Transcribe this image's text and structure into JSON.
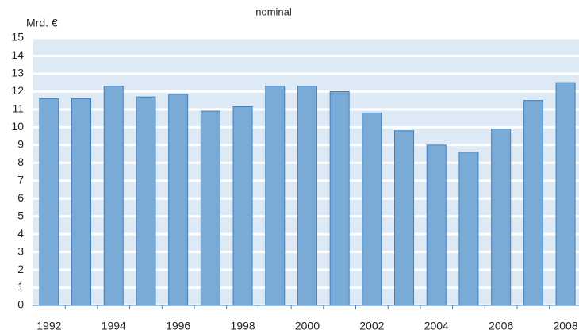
{
  "chart_data": {
    "type": "bar",
    "title": "nominal",
    "y_label": "Mrd. €",
    "categories": [
      "1992",
      null,
      "1994",
      null,
      "1996",
      null,
      "1998",
      null,
      "2000",
      null,
      "2002",
      null,
      "2004",
      null,
      "2006",
      null,
      "2008"
    ],
    "values": [
      11.6,
      11.6,
      12.3,
      11.7,
      11.85,
      10.9,
      11.15,
      12.3,
      12.3,
      12.0,
      10.8,
      9.8,
      9.0,
      8.6,
      9.9,
      11.5,
      12.5
    ],
    "color": "#7aaad6",
    "ylim": [
      0,
      15
    ],
    "yticks": [
      0,
      1,
      2,
      3,
      4,
      5,
      6,
      7,
      8,
      9,
      10,
      11,
      12,
      13,
      14,
      15
    ],
    "grid": true
  }
}
